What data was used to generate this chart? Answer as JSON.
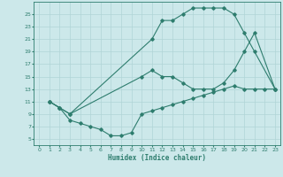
{
  "title": "",
  "xlabel": "Humidex (Indice chaleur)",
  "xlim": [
    -0.5,
    23.5
  ],
  "ylim": [
    4,
    27
  ],
  "yticks": [
    5,
    7,
    9,
    11,
    13,
    15,
    17,
    19,
    21,
    23,
    25
  ],
  "xticks": [
    0,
    1,
    2,
    3,
    4,
    5,
    6,
    7,
    8,
    9,
    10,
    11,
    12,
    13,
    14,
    15,
    16,
    17,
    18,
    19,
    20,
    21,
    22,
    23
  ],
  "bg_color": "#cce8ea",
  "line_color": "#2e7d6e",
  "grid_color": "#b0d4d6",
  "line1_x": [
    1,
    2,
    3,
    11,
    12,
    13,
    14,
    15,
    16,
    17,
    18,
    19,
    20,
    21,
    23
  ],
  "line1_y": [
    11,
    10,
    9,
    21,
    24,
    24,
    25,
    26,
    26,
    26,
    26,
    25,
    22,
    19,
    13
  ],
  "line2_x": [
    1,
    2,
    3,
    10,
    11,
    12,
    13,
    14,
    15,
    16,
    17,
    18,
    19,
    20,
    21,
    23
  ],
  "line2_y": [
    11,
    10,
    9,
    15,
    16,
    15,
    15,
    14,
    13,
    13,
    13,
    14,
    16,
    19,
    22,
    13
  ],
  "line3_x": [
    1,
    2,
    3,
    4,
    5,
    6,
    7,
    8,
    9,
    10,
    11,
    12,
    13,
    14,
    15,
    16,
    17,
    18,
    19,
    20,
    21,
    22,
    23
  ],
  "line3_y": [
    11,
    10,
    8,
    7.5,
    7,
    6.5,
    5.5,
    5.5,
    6,
    9,
    9.5,
    10,
    10.5,
    11,
    11.5,
    12,
    12.5,
    13,
    13.5,
    13,
    13,
    13,
    13
  ]
}
